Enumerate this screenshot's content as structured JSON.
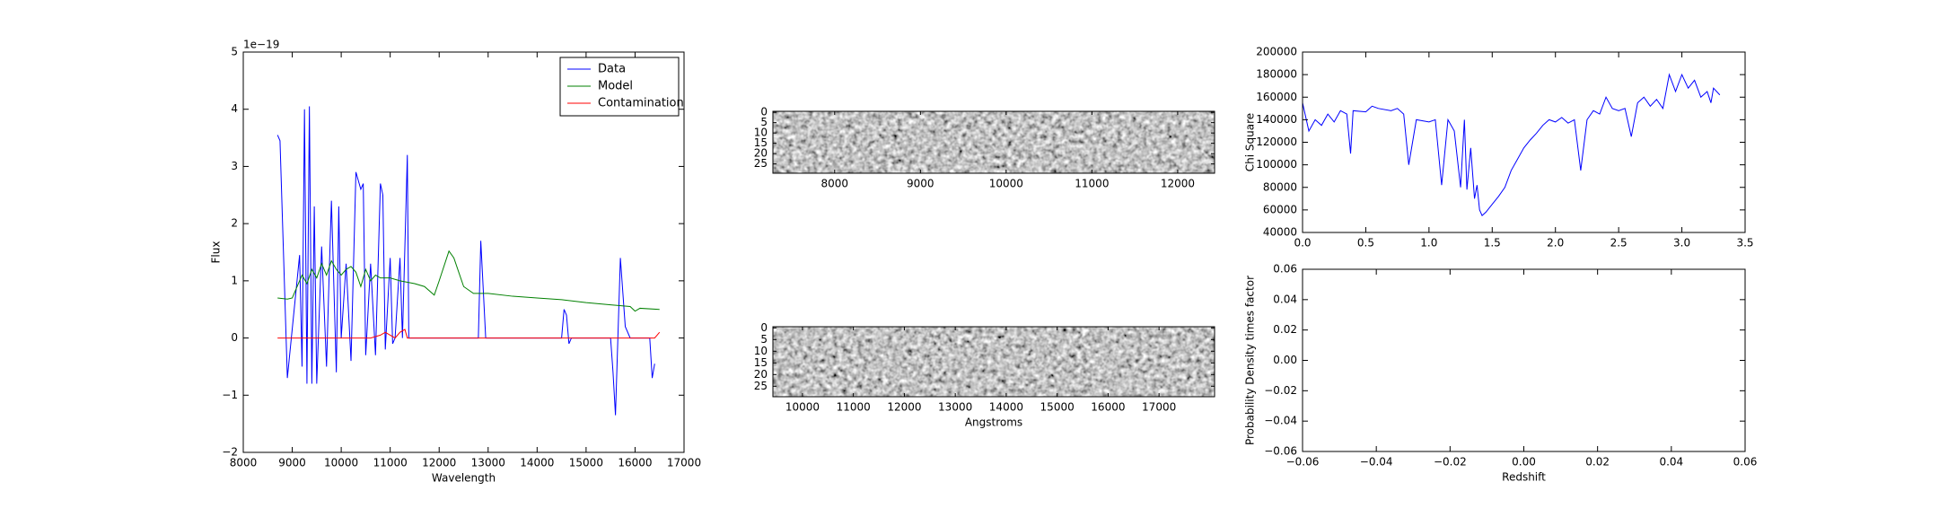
{
  "chart_data": [
    {
      "type": "line",
      "xlabel": "Wavelength",
      "ylabel": "Flux",
      "offset_text": "1e−19",
      "xlim": [
        8000,
        17000
      ],
      "ylim": [
        -2,
        5
      ],
      "xticks": [
        8000,
        9000,
        10000,
        11000,
        12000,
        13000,
        14000,
        15000,
        16000,
        17000
      ],
      "yticks": [
        {
          "value": -2,
          "label": "−2"
        },
        {
          "value": -1,
          "label": "−1"
        },
        0,
        1,
        2,
        3,
        4,
        5
      ],
      "legend": "upper right",
      "series": [
        {
          "name": "Data",
          "color": "#0000ff",
          "x": [
            8700,
            8750,
            8900,
            9150,
            9200,
            9250,
            9300,
            9350,
            9400,
            9450,
            9500,
            9600,
            9700,
            9750,
            9800,
            9900,
            9950,
            10000,
            10100,
            10200,
            10300,
            10400,
            10450,
            10500,
            10600,
            10700,
            10800,
            10850,
            10900,
            11000,
            11050,
            11100,
            11200,
            11250,
            11350,
            11380,
            12800,
            12850,
            12950,
            14500,
            14550,
            14600,
            14650,
            14700,
            15500,
            15550,
            15600,
            15700,
            15800,
            15900,
            16300,
            16350,
            16400
          ],
          "values": [
            3.55,
            3.45,
            -0.7,
            1.45,
            -0.5,
            4.0,
            -0.8,
            4.05,
            -0.8,
            2.3,
            -0.8,
            1.6,
            -0.5,
            1.0,
            2.4,
            -0.6,
            2.3,
            0,
            1.3,
            -0.4,
            2.9,
            2.6,
            2.7,
            -0.3,
            1.3,
            -0.3,
            2.7,
            2.5,
            -0.2,
            1.4,
            -0.1,
            0,
            1.4,
            0,
            3.2,
            0,
            0,
            1.7,
            0,
            0,
            0.5,
            0.4,
            -0.1,
            0,
            0,
            -0.6,
            -1.35,
            1.4,
            0.2,
            0,
            0,
            -0.7,
            -0.45
          ]
        },
        {
          "name": "Model",
          "color": "#008000",
          "x": [
            8700,
            8900,
            9000,
            9100,
            9200,
            9300,
            9400,
            9500,
            9600,
            9700,
            9800,
            9900,
            10000,
            10100,
            10200,
            10300,
            10400,
            10500,
            10600,
            10700,
            10800,
            11000,
            11200,
            11500,
            11700,
            11900,
            12000,
            12200,
            12300,
            12500,
            12700,
            13000,
            13500,
            14000,
            14500,
            15000,
            15500,
            15900,
            16000,
            16100,
            16500
          ],
          "values": [
            0.7,
            0.68,
            0.7,
            0.9,
            1.1,
            0.95,
            1.2,
            1.05,
            1.3,
            1.1,
            1.35,
            1.2,
            1.1,
            1.2,
            1.25,
            1.15,
            0.9,
            1.2,
            1.0,
            1.1,
            1.05,
            1.05,
            1.0,
            0.95,
            0.9,
            0.75,
            1.0,
            1.52,
            1.4,
            0.9,
            0.78,
            0.78,
            0.73,
            0.7,
            0.67,
            0.62,
            0.58,
            0.55,
            0.47,
            0.52,
            0.5
          ]
        },
        {
          "name": "Contamination",
          "color": "#ff0000",
          "x": [
            8700,
            10600,
            10800,
            10900,
            11000,
            11100,
            11200,
            11300,
            11350,
            16400,
            16450,
            16500
          ],
          "values": [
            0,
            0,
            0.05,
            0.1,
            0.05,
            0,
            0.1,
            0.15,
            0,
            0,
            0.05,
            0.1
          ]
        }
      ]
    },
    {
      "type": "image",
      "xlim": [
        7280,
        12430
      ],
      "ylim": [
        -0.5,
        29.5
      ],
      "y_inverted": true,
      "xticks": [
        8000,
        9000,
        10000,
        11000,
        12000
      ],
      "yticks": [
        0,
        5,
        10,
        15,
        20,
        25
      ]
    },
    {
      "type": "image",
      "xlabel": "Angstroms",
      "xlim": [
        9420,
        18090
      ],
      "ylim": [
        -0.5,
        29.5
      ],
      "y_inverted": true,
      "xticks": [
        10000,
        11000,
        12000,
        13000,
        14000,
        15000,
        16000,
        17000
      ],
      "yticks": [
        0,
        5,
        10,
        15,
        20,
        25
      ]
    },
    {
      "type": "line",
      "ylabel": "Chi Square",
      "xlim": [
        0,
        3.5
      ],
      "ylim": [
        40000,
        200000
      ],
      "xticks": [
        {
          "value": 0,
          "label": "0.0"
        },
        0.5,
        {
          "value": 1,
          "label": "1.0"
        },
        1.5,
        {
          "value": 2,
          "label": "2.0"
        },
        2.5,
        {
          "value": 3,
          "label": "3.0"
        },
        3.5
      ],
      "yticks": [
        40000,
        60000,
        80000,
        100000,
        120000,
        140000,
        160000,
        180000,
        200000
      ],
      "series": [
        {
          "color": "#0000ff",
          "x": [
            0,
            0.05,
            0.1,
            0.15,
            0.2,
            0.25,
            0.3,
            0.35,
            0.38,
            0.4,
            0.5,
            0.55,
            0.6,
            0.7,
            0.75,
            0.8,
            0.84,
            0.9,
            1.0,
            1.05,
            1.1,
            1.15,
            1.2,
            1.25,
            1.28,
            1.3,
            1.33,
            1.36,
            1.38,
            1.4,
            1.42,
            1.45,
            1.5,
            1.55,
            1.6,
            1.65,
            1.7,
            1.75,
            1.8,
            1.85,
            1.9,
            1.95,
            2.0,
            2.05,
            2.1,
            2.15,
            2.2,
            2.25,
            2.3,
            2.35,
            2.4,
            2.45,
            2.5,
            2.55,
            2.6,
            2.65,
            2.7,
            2.75,
            2.8,
            2.85,
            2.9,
            2.95,
            3.0,
            3.05,
            3.1,
            3.15,
            3.2,
            3.23,
            3.25,
            3.3
          ],
          "values": [
            155000,
            130000,
            140000,
            135000,
            145000,
            138000,
            148000,
            145000,
            110000,
            148000,
            147000,
            152000,
            150000,
            148000,
            150000,
            145000,
            100000,
            140000,
            138000,
            140000,
            82000,
            140000,
            130000,
            80000,
            140000,
            78000,
            115000,
            70000,
            82000,
            60000,
            55000,
            58000,
            65000,
            72000,
            80000,
            95000,
            105000,
            115000,
            122000,
            128000,
            135000,
            140000,
            138000,
            142000,
            137000,
            140000,
            95000,
            140000,
            148000,
            145000,
            160000,
            150000,
            148000,
            150000,
            125000,
            155000,
            160000,
            152000,
            158000,
            150000,
            180000,
            165000,
            180000,
            168000,
            175000,
            160000,
            165000,
            155000,
            168000,
            162000
          ]
        }
      ]
    },
    {
      "type": "line",
      "xlabel": "Redshift",
      "ylabel": "Probability Density times factor",
      "xlim": [
        -0.06,
        0.06
      ],
      "ylim": [
        -0.06,
        0.06
      ],
      "xticks": [
        {
          "value": -0.06,
          "label": "−0.06"
        },
        {
          "value": -0.04,
          "label": "−0.04"
        },
        {
          "value": -0.02,
          "label": "−0.02"
        },
        {
          "value": 0,
          "label": "0.00"
        },
        0.02,
        0.04,
        0.06
      ],
      "yticks": [
        {
          "value": -0.06,
          "label": "−0.06"
        },
        {
          "value": -0.04,
          "label": "−0.04"
        },
        {
          "value": -0.02,
          "label": "−0.02"
        },
        {
          "value": 0,
          "label": "0.00"
        },
        0.02,
        0.04,
        0.06
      ],
      "series": []
    }
  ]
}
